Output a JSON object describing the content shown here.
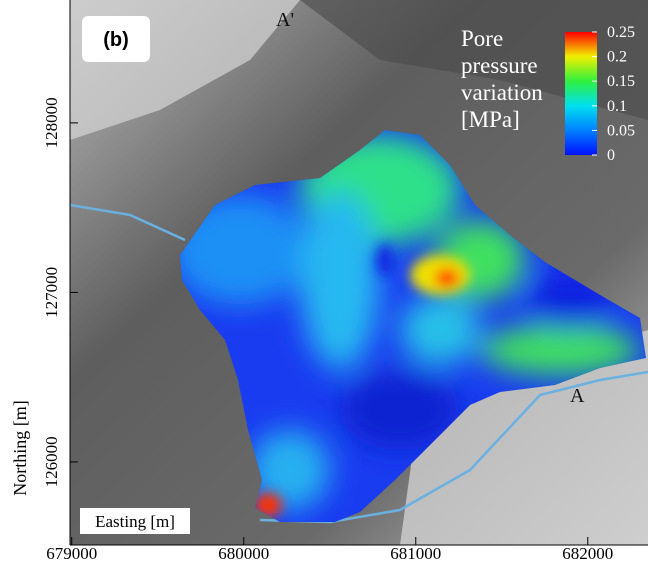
{
  "panel_label": "(b)",
  "map": {
    "x_label": "Easting [m]",
    "y_label": "Northing [m]",
    "xlim": [
      678990,
      682350
    ],
    "ylim": [
      125510,
      128725
    ],
    "xticks": [
      679000,
      680000,
      681000,
      682000
    ],
    "yticks": [
      126000,
      127000,
      128000
    ]
  },
  "colorbar": {
    "title": [
      "Pore",
      "pressure",
      "variation",
      "[MPa]"
    ],
    "lim": [
      0,
      0.25
    ],
    "ticks": [
      0,
      0.05,
      0.1,
      0.15,
      0.2,
      0.25
    ]
  },
  "section_labels": [
    "A'",
    "A"
  ]
}
